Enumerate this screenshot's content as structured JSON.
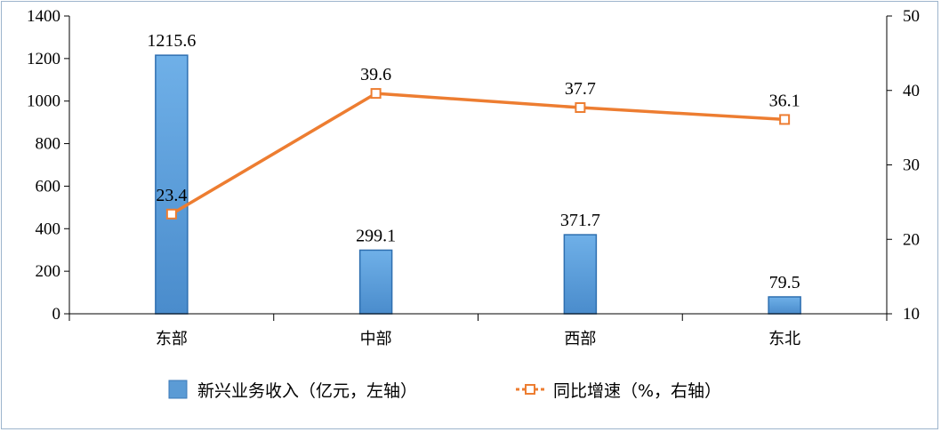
{
  "chart_data": {
    "type": "bar+line",
    "categories": [
      "东部",
      "中部",
      "西部",
      "东北"
    ],
    "series": [
      {
        "name": "新兴业务收入（亿元，左轴）",
        "type": "bar",
        "axis": "left",
        "values": [
          1215.6,
          299.1,
          371.7,
          79.5
        ],
        "labels": [
          "1215.6",
          "299.1",
          "371.7",
          "79.5"
        ],
        "color": "#5b9bd5"
      },
      {
        "name": "同比增速（%，右轴）",
        "type": "line",
        "axis": "right",
        "values": [
          23.4,
          39.6,
          37.7,
          36.1
        ],
        "labels": [
          "23.4",
          "39.6",
          "37.7",
          "36.1"
        ],
        "color": "#ed7d31"
      }
    ],
    "y_left": {
      "min": 0,
      "max": 1400,
      "ticks": [
        "0",
        "200",
        "400",
        "600",
        "800",
        "1000",
        "1200",
        "1400"
      ]
    },
    "y_right": {
      "min": 10,
      "max": 50,
      "ticks": [
        "10",
        "20",
        "30",
        "40",
        "50"
      ]
    },
    "grid": false,
    "legend_position": "bottom"
  }
}
